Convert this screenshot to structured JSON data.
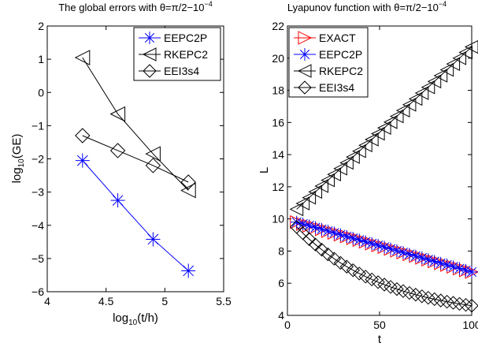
{
  "chart_data": [
    {
      "type": "line",
      "title_main": "The global errors with θ=π/2−10",
      "title_exp": "−4",
      "xlabel_base": "log",
      "xlabel_sub": "10",
      "xlabel_tail": "(t/h)",
      "ylabel_base": "log",
      "ylabel_sub": "10",
      "ylabel_tail": "(GE)",
      "xlim": [
        4,
        5.5
      ],
      "ylim": [
        -6,
        2
      ],
      "xticks": [
        4,
        4.5,
        5,
        5.5
      ],
      "xtick_labels": [
        "4",
        "4.5",
        "5",
        "5.5"
      ],
      "yticks": [
        -6,
        -5,
        -4,
        -3,
        -2,
        -1,
        0,
        1,
        2
      ],
      "ytick_labels": [
        "−6",
        "−5",
        "−4",
        "−3",
        "−2",
        "−1",
        "0",
        "1",
        "2"
      ],
      "grid": false,
      "legend_position": "top-right",
      "series": [
        {
          "name": "EEPC2P",
          "color": "#0000ff",
          "marker": "asterisk",
          "x": [
            4.3,
            4.6,
            4.9,
            5.2
          ],
          "y": [
            -2.05,
            -3.25,
            -4.42,
            -5.37
          ]
        },
        {
          "name": "RKEPC2",
          "color": "#000000",
          "marker": "triangle-left",
          "x": [
            4.3,
            4.6,
            4.9,
            5.2
          ],
          "y": [
            1.05,
            -0.65,
            -1.85,
            -2.95
          ]
        },
        {
          "name": "EEI3s4",
          "color": "#000000",
          "marker": "diamond",
          "x": [
            4.3,
            4.6,
            4.9,
            5.2
          ],
          "y": [
            -1.3,
            -1.75,
            -2.2,
            -2.7
          ]
        }
      ]
    },
    {
      "type": "line",
      "title_main": "Lyapunov function with θ=π/2−10",
      "title_exp": "−4",
      "xlabel": "t",
      "ylabel": "L",
      "xlim": [
        0,
        100
      ],
      "ylim": [
        4,
        22
      ],
      "xticks": [
        0,
        50,
        100
      ],
      "xtick_labels": [
        "0",
        "50",
        "100"
      ],
      "yticks": [
        4,
        6,
        8,
        10,
        12,
        14,
        16,
        18,
        20,
        22
      ],
      "ytick_labels": [
        "4",
        "6",
        "8",
        "10",
        "12",
        "14",
        "16",
        "18",
        "20",
        "22"
      ],
      "grid": false,
      "legend_position": "top-left",
      "series": [
        {
          "name": "EXACT",
          "color": "#ff0000",
          "marker": "triangle-right",
          "line": false,
          "x_start": 5,
          "x_end": 100,
          "x_step": 3.4,
          "y_start": 9.8,
          "y_end": 6.7
        },
        {
          "name": "EEPC2P",
          "color": "#0000ff",
          "marker": "asterisk",
          "line": true,
          "x_start": 5,
          "x_end": 100,
          "x_step": 3.4,
          "y_start": 9.8,
          "y_end": 6.7
        },
        {
          "name": "RKEPC2",
          "color": "#000000",
          "marker": "triangle-left",
          "line": true,
          "x_start": 5,
          "x_end": 100,
          "x_step": 3.4,
          "y_start": 10.6,
          "y_end": 20.7
        },
        {
          "name": "EEI3s4",
          "color": "#000000",
          "marker": "diamond",
          "line": true,
          "x_start": 5,
          "x_end": 100,
          "x_step": 3.4,
          "y_start": 9.5,
          "y_end": 4.6,
          "curve": "decay"
        }
      ]
    }
  ]
}
